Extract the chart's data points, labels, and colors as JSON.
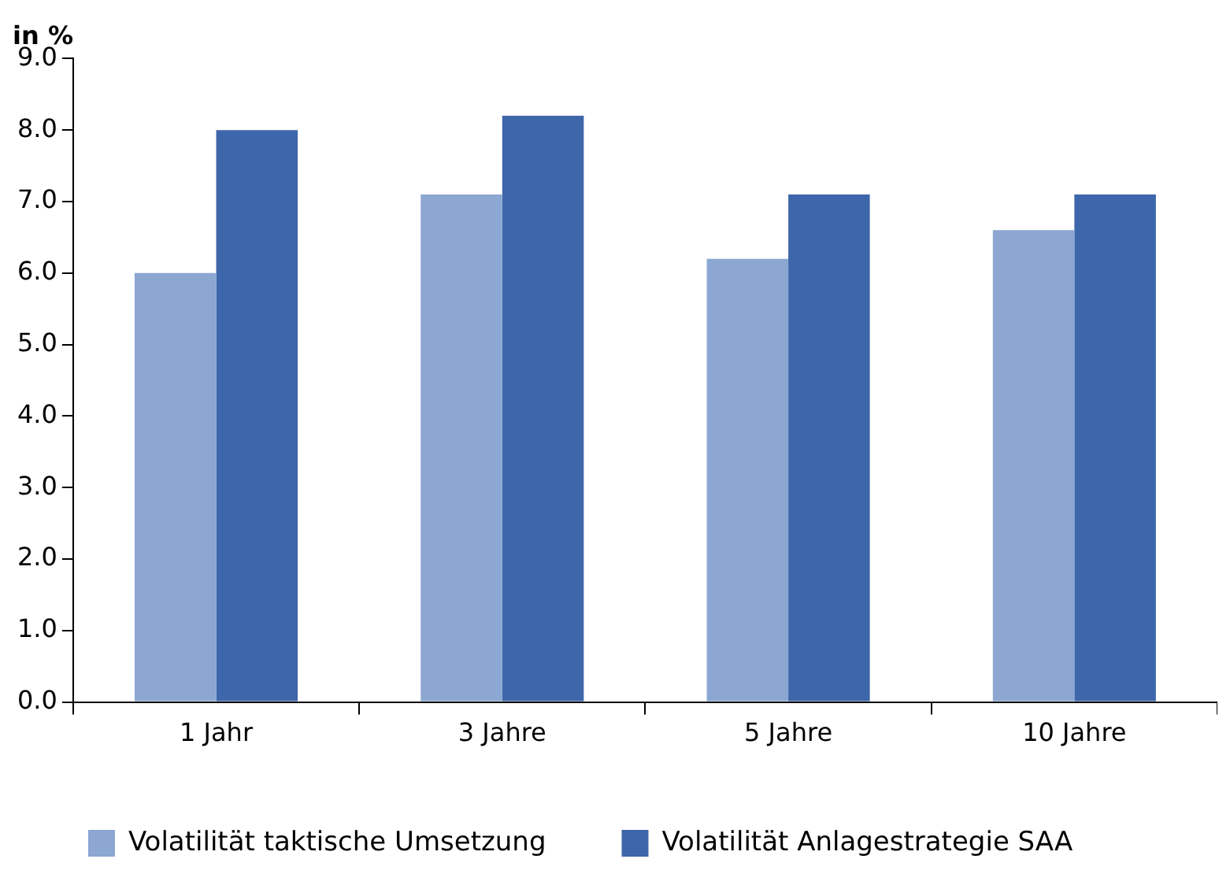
{
  "chart_data": {
    "type": "bar",
    "ylabel": "in %",
    "categories": [
      "1 Jahr",
      "3 Jahre",
      "5 Jahre",
      "10 Jahre"
    ],
    "series": [
      {
        "name": "Volatilität taktische Umsetzung",
        "color": "#8ba7d2",
        "values": [
          6.0,
          7.1,
          6.2,
          6.6
        ]
      },
      {
        "name": "Volatilität Anlagestrategie SAA",
        "color": "#3e66aa",
        "values": [
          8.0,
          8.2,
          7.1,
          7.1
        ]
      }
    ],
    "ylim": [
      0,
      9
    ],
    "yticks": [
      {
        "value": 0,
        "label": "0.0"
      },
      {
        "value": 1,
        "label": "1.0"
      },
      {
        "value": 2,
        "label": "2.0"
      },
      {
        "value": 3,
        "label": "3.0"
      },
      {
        "value": 4,
        "label": "4.0"
      },
      {
        "value": 5,
        "label": "5.0"
      },
      {
        "value": 6,
        "label": "6.0"
      },
      {
        "value": 7,
        "label": "7.0"
      },
      {
        "value": 8,
        "label": "8.0"
      },
      {
        "value": 9,
        "label": "9.0"
      }
    ],
    "grid": false,
    "legend": "bottom"
  }
}
